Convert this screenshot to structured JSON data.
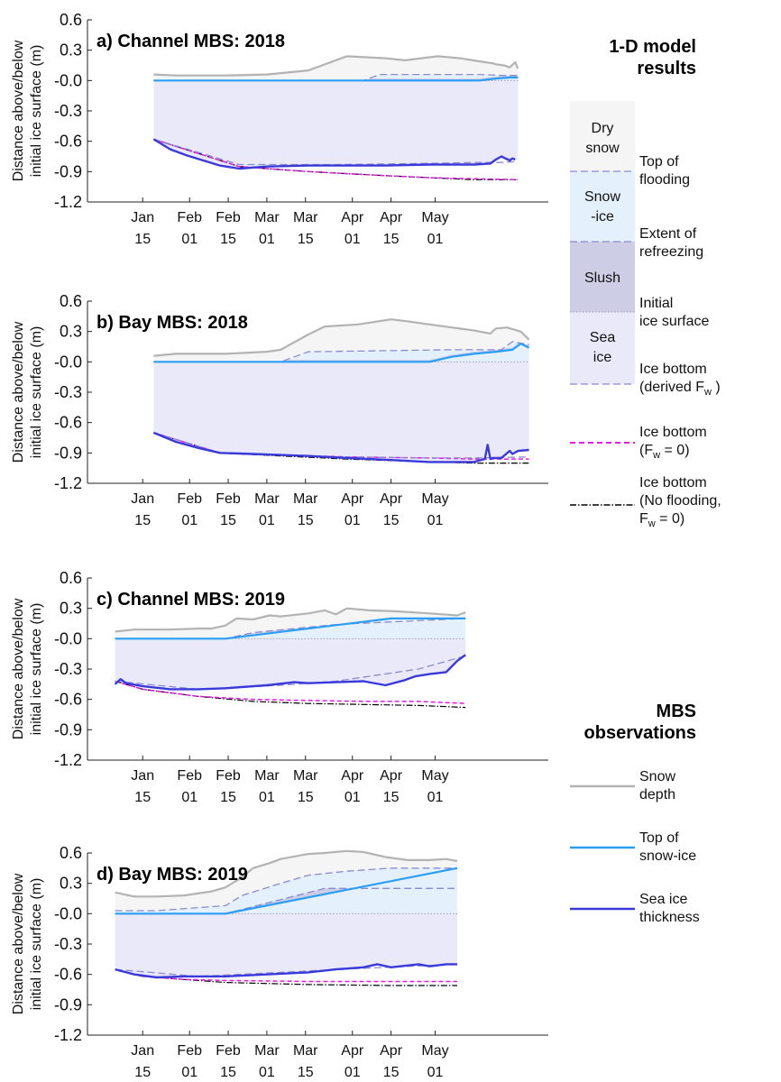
{
  "figure": {
    "header_model": [
      "1-D model",
      "results"
    ],
    "header_obs": [
      "MBS",
      "observations"
    ],
    "ylabel": [
      "Distance above/below",
      "initial ice surface (m)"
    ]
  },
  "legend": {
    "key_blocks": [
      {
        "lines": [
          "Dry",
          "snow"
        ],
        "color": "#f5f5f5"
      },
      {
        "lines": [
          "Snow",
          "-ice"
        ],
        "color": "#e4f1fc"
      },
      {
        "lines": [
          "Slush"
        ],
        "color": "#cecde6"
      },
      {
        "lines": [
          "Sea",
          "ice"
        ],
        "color": "#e9e9f9"
      }
    ],
    "top_of_flooding": [
      "Top of",
      "flooding"
    ],
    "extent_of_refreezing": [
      "Extent of",
      "refreezing"
    ],
    "initial_ice_surface": [
      "Initial",
      "ice surface"
    ],
    "ice_bottom_derived": [
      "Ice bottom",
      "(derived F",
      "w",
      " )"
    ],
    "ice_bottom_fw0": [
      "Ice bottom",
      "(F",
      "w",
      " = 0)"
    ],
    "ice_bottom_noflood": [
      "Ice bottom",
      "(No flooding,",
      "F",
      "w",
      " = 0)"
    ],
    "snow_depth": [
      "Snow",
      "depth"
    ],
    "top_snow_ice": [
      "Top of",
      "snow-ice"
    ],
    "sea_ice_thickness": [
      "Sea ice",
      "thickness"
    ]
  },
  "colors": {
    "snow_depth": "#b3b3b3",
    "top_snow_ice": "#2a9df4",
    "sea_ice_thickness": "#3a3adb",
    "ice_bottom_fw0": "#e619e6",
    "ice_bottom_noflood": "#000000",
    "dashed_model": "#8a8ad0",
    "dry_snow_fill": "#f5f5f5",
    "snow_ice_fill": "#e4f1fc",
    "slush_fill": "#cecde6",
    "sea_ice_fill": "#e9e9f9"
  },
  "chart_data": [
    {
      "type": "area",
      "title": "a) Channel MBS: 2018",
      "xlabel": "",
      "ylabel": "Distance above/below initial ice surface (m)",
      "ylim": [
        -1.2,
        0.6
      ],
      "yticks": [
        "0.6",
        "0.3",
        "-0.0",
        "-0.3",
        "-0.6",
        "-0.9",
        "-1.2"
      ],
      "xticks": [
        [
          "Jan",
          "15"
        ],
        [
          "Feb",
          "01"
        ],
        [
          "Feb",
          "15"
        ],
        [
          "Mar",
          "01"
        ],
        [
          "Mar",
          "15"
        ],
        [
          "Apr",
          "01"
        ],
        [
          "Apr",
          "15"
        ],
        [
          "May",
          "01"
        ]
      ],
      "x_note": "x values are days since Jan 15 of the plotted year",
      "series": [
        {
          "name": "Snow depth",
          "x": [
            4,
            12,
            30,
            45,
            60,
            74,
            88,
            95,
            107,
            115,
            122,
            127,
            128,
            131,
            133,
            135,
            136
          ],
          "y": [
            0.06,
            0.05,
            0.05,
            0.06,
            0.1,
            0.24,
            0.22,
            0.2,
            0.24,
            0.22,
            0.19,
            0.17,
            0.16,
            0.15,
            0.13,
            0.18,
            0.12
          ]
        },
        {
          "name": "Top of snow-ice",
          "x": [
            4,
            122,
            128,
            133,
            136
          ],
          "y": [
            0.0,
            0.0,
            0.02,
            0.03,
            0.03
          ]
        },
        {
          "name": "Top of flooding",
          "x": [
            4,
            80,
            86,
            95,
            122,
            130,
            136
          ],
          "y": [
            0.0,
            0.0,
            0.06,
            0.06,
            0.06,
            0.05,
            0.05
          ]
        },
        {
          "name": "Sea ice thickness",
          "x": [
            4,
            10,
            16,
            28,
            35,
            45,
            60,
            74,
            88,
            104,
            120,
            126,
            128,
            130,
            133,
            134,
            135
          ],
          "y": [
            -0.58,
            -0.68,
            -0.74,
            -0.84,
            -0.87,
            -0.85,
            -0.84,
            -0.84,
            -0.84,
            -0.83,
            -0.83,
            -0.82,
            -0.78,
            -0.75,
            -0.79,
            -0.77,
            -0.78
          ]
        },
        {
          "name": "Ice bottom (derived Fw)",
          "x": [
            4,
            35,
            70,
            100,
            120,
            130,
            136
          ],
          "y": [
            -0.58,
            -0.83,
            -0.83,
            -0.82,
            -0.81,
            -0.81,
            -0.8
          ]
        },
        {
          "name": "Ice bottom (Fw = 0)",
          "x": [
            4,
            35,
            45,
            60,
            74,
            88,
            104,
            120,
            136
          ],
          "y": [
            -0.58,
            -0.85,
            -0.87,
            -0.9,
            -0.92,
            -0.94,
            -0.96,
            -0.97,
            -0.98
          ]
        },
        {
          "name": "Ice bottom (No flooding, Fw = 0)",
          "x": [
            4,
            35,
            45,
            60,
            74,
            88,
            104,
            120,
            136
          ],
          "y": [
            -0.58,
            -0.85,
            -0.87,
            -0.9,
            -0.92,
            -0.94,
            -0.96,
            -0.98,
            -0.98
          ]
        }
      ]
    },
    {
      "type": "area",
      "title": "b) Bay MBS: 2018",
      "xlabel": "",
      "ylabel": "Distance above/below initial ice surface (m)",
      "ylim": [
        -1.2,
        0.6
      ],
      "yticks": [
        "0.6",
        "0.3",
        "-0.0",
        "-0.3",
        "-0.6",
        "-0.9",
        "-1.2"
      ],
      "xticks": [
        [
          "Jan",
          "15"
        ],
        [
          "Feb",
          "01"
        ],
        [
          "Feb",
          "15"
        ],
        [
          "Mar",
          "01"
        ],
        [
          "Mar",
          "15"
        ],
        [
          "Apr",
          "01"
        ],
        [
          "Apr",
          "15"
        ],
        [
          "May",
          "01"
        ]
      ],
      "x_note": "x values are days since Jan 15 of the plotted year",
      "series": [
        {
          "name": "Snow depth",
          "x": [
            4,
            12,
            30,
            45,
            50,
            60,
            66,
            78,
            90,
            96,
            104,
            112,
            120,
            126,
            128,
            132,
            137,
            140
          ],
          "y": [
            0.06,
            0.08,
            0.08,
            0.1,
            0.12,
            0.27,
            0.35,
            0.37,
            0.42,
            0.4,
            0.37,
            0.34,
            0.31,
            0.28,
            0.33,
            0.34,
            0.3,
            0.22
          ]
        },
        {
          "name": "Top of snow-ice",
          "x": [
            4,
            104,
            112,
            120,
            128,
            134,
            137,
            140
          ],
          "y": [
            0.0,
            0.0,
            0.05,
            0.08,
            0.1,
            0.12,
            0.18,
            0.14
          ]
        },
        {
          "name": "Top of flooding",
          "x": [
            4,
            50,
            60,
            112,
            130,
            134,
            140
          ],
          "y": [
            0.0,
            0.0,
            0.1,
            0.12,
            0.12,
            0.2,
            0.17
          ]
        },
        {
          "name": "Sea ice thickness",
          "x": [
            4,
            12,
            20,
            28,
            40,
            50,
            60,
            74,
            90,
            104,
            112,
            120,
            124,
            125,
            126,
            127,
            130,
            133,
            134,
            136,
            140
          ],
          "y": [
            -0.7,
            -0.79,
            -0.85,
            -0.9,
            -0.91,
            -0.92,
            -0.93,
            -0.95,
            -0.97,
            -0.99,
            -0.99,
            -0.99,
            -0.96,
            -0.82,
            -0.96,
            -0.95,
            -0.95,
            -0.88,
            -0.91,
            -0.88,
            -0.87
          ]
        },
        {
          "name": "Ice bottom (derived Fw)",
          "x": [
            4,
            28,
            50,
            74,
            104,
            120,
            140
          ],
          "y": [
            -0.7,
            -0.9,
            -0.92,
            -0.94,
            -0.95,
            -0.95,
            -0.94
          ]
        },
        {
          "name": "Ice bottom (Fw = 0)",
          "x": [
            4,
            28,
            50,
            74,
            104,
            120,
            140
          ],
          "y": [
            -0.7,
            -0.9,
            -0.92,
            -0.94,
            -0.95,
            -0.96,
            -0.96
          ]
        },
        {
          "name": "Ice bottom (No flooding, Fw = 0)",
          "x": [
            4,
            28,
            50,
            74,
            104,
            120,
            140
          ],
          "y": [
            -0.7,
            -0.9,
            -0.93,
            -0.96,
            -0.99,
            -1.0,
            -1.0
          ]
        }
      ]
    },
    {
      "type": "area",
      "title": "c) Channel MBS: 2019",
      "xlabel": "",
      "ylabel": "Distance above/below initial ice surface (m)",
      "ylim": [
        -1.2,
        0.6
      ],
      "yticks": [
        "0.6",
        "0.3",
        "-0.0",
        "-0.3",
        "-0.6",
        "-0.9",
        "-1.2"
      ],
      "xticks": [
        [
          "Jan",
          "15"
        ],
        [
          "Feb",
          "01"
        ],
        [
          "Feb",
          "15"
        ],
        [
          "Mar",
          "01"
        ],
        [
          "Mar",
          "15"
        ],
        [
          "Apr",
          "01"
        ],
        [
          "Apr",
          "15"
        ],
        [
          "May",
          "01"
        ]
      ],
      "x_note": "x values are days since Jan 15 of the plotted year",
      "series": [
        {
          "name": "Snow depth",
          "x": [
            -10,
            -3,
            10,
            20,
            25,
            30,
            34,
            40,
            46,
            50,
            60,
            66,
            70,
            74,
            82,
            92,
            104,
            114,
            117
          ],
          "y": [
            0.07,
            0.09,
            0.09,
            0.1,
            0.1,
            0.13,
            0.2,
            0.19,
            0.23,
            0.22,
            0.25,
            0.28,
            0.24,
            0.3,
            0.28,
            0.27,
            0.25,
            0.23,
            0.26
          ]
        },
        {
          "name": "Top of snow-ice",
          "x": [
            -10,
            30,
            90,
            117
          ],
          "y": [
            0.0,
            0.0,
            0.2,
            0.2
          ]
        },
        {
          "name": "Top of flooding",
          "x": [
            -10,
            30,
            40,
            70,
            117
          ],
          "y": [
            0.0,
            0.0,
            0.06,
            0.14,
            0.2
          ]
        },
        {
          "name": "Sea ice thickness",
          "x": [
            -10,
            -8,
            -6,
            0,
            10,
            20,
            30,
            45,
            55,
            60,
            70,
            80,
            88,
            95,
            99,
            104,
            110,
            114,
            116,
            117
          ],
          "y": [
            -0.45,
            -0.4,
            -0.44,
            -0.47,
            -0.5,
            -0.5,
            -0.49,
            -0.46,
            -0.43,
            -0.44,
            -0.43,
            -0.42,
            -0.46,
            -0.41,
            -0.37,
            -0.35,
            -0.33,
            -0.22,
            -0.18,
            -0.16
          ]
        },
        {
          "name": "Ice bottom (derived Fw)",
          "x": [
            -10,
            20,
            50,
            70,
            100,
            117
          ],
          "y": [
            -0.42,
            -0.5,
            -0.46,
            -0.42,
            -0.3,
            -0.17
          ]
        },
        {
          "name": "Ice bottom (Fw = 0)",
          "x": [
            -10,
            0,
            20,
            40,
            60,
            80,
            100,
            117
          ],
          "y": [
            -0.42,
            -0.5,
            -0.57,
            -0.6,
            -0.61,
            -0.62,
            -0.62,
            -0.64
          ]
        },
        {
          "name": "Ice bottom (No flooding, Fw = 0)",
          "x": [
            -10,
            0,
            20,
            40,
            60,
            80,
            100,
            117
          ],
          "y": [
            -0.42,
            -0.5,
            -0.57,
            -0.62,
            -0.64,
            -0.65,
            -0.66,
            -0.68
          ]
        }
      ]
    },
    {
      "type": "area",
      "title": "d) Bay MBS: 2019",
      "xlabel": "",
      "ylabel": "Distance above/below initial ice surface (m)",
      "ylim": [
        -1.2,
        0.6
      ],
      "yticks": [
        "0.6",
        "0.3",
        "-0.0",
        "-0.3",
        "-0.6",
        "-0.9",
        "-1.2"
      ],
      "xticks": [
        [
          "Jan",
          "15"
        ],
        [
          "Feb",
          "01"
        ],
        [
          "Feb",
          "15"
        ],
        [
          "Mar",
          "01"
        ],
        [
          "Mar",
          "15"
        ],
        [
          "Apr",
          "01"
        ],
        [
          "Apr",
          "15"
        ],
        [
          "May",
          "01"
        ]
      ],
      "x_note": "x values are days since Jan 15 of the plotted year",
      "series": [
        {
          "name": "Snow depth",
          "x": [
            -10,
            -3,
            5,
            15,
            25,
            30,
            36,
            40,
            46,
            50,
            60,
            66,
            74,
            80,
            88,
            96,
            104,
            110,
            114
          ],
          "y": [
            0.21,
            0.17,
            0.17,
            0.18,
            0.22,
            0.26,
            0.36,
            0.45,
            0.5,
            0.54,
            0.59,
            0.6,
            0.62,
            0.61,
            0.56,
            0.53,
            0.53,
            0.54,
            0.52
          ]
        },
        {
          "name": "Top of snow-ice",
          "x": [
            -10,
            5,
            30,
            114
          ],
          "y": [
            0.0,
            0.0,
            0.0,
            0.45
          ]
        },
        {
          "name": "Top of flooding",
          "x": [
            -10,
            5,
            30,
            36,
            50,
            60,
            74,
            90,
            114
          ],
          "y": [
            0.03,
            0.03,
            0.08,
            0.18,
            0.3,
            0.38,
            0.42,
            0.45,
            0.45
          ]
        },
        {
          "name": "Extent of refreezing",
          "x": [
            -10,
            30,
            66,
            114
          ],
          "y": [
            0.0,
            0.0,
            0.25,
            0.25
          ]
        },
        {
          "name": "Sea ice thickness",
          "x": [
            -10,
            -3,
            5,
            15,
            30,
            45,
            60,
            70,
            80,
            85,
            90,
            100,
            104,
            110,
            114
          ],
          "y": [
            -0.55,
            -0.6,
            -0.63,
            -0.62,
            -0.62,
            -0.6,
            -0.58,
            -0.55,
            -0.53,
            -0.5,
            -0.53,
            -0.5,
            -0.52,
            -0.5,
            -0.5
          ]
        },
        {
          "name": "Ice bottom (derived Fw)",
          "x": [
            -10,
            20,
            50,
            80,
            114
          ],
          "y": [
            -0.55,
            -0.62,
            -0.58,
            -0.54,
            -0.5
          ]
        },
        {
          "name": "Ice bottom (Fw = 0)",
          "x": [
            -10,
            0,
            15,
            30,
            60,
            90,
            114
          ],
          "y": [
            -0.55,
            -0.62,
            -0.65,
            -0.66,
            -0.67,
            -0.67,
            -0.67
          ]
        },
        {
          "name": "Ice bottom (No flooding, Fw = 0)",
          "x": [
            -10,
            0,
            15,
            30,
            60,
            90,
            114
          ],
          "y": [
            -0.55,
            -0.62,
            -0.65,
            -0.68,
            -0.7,
            -0.71,
            -0.71
          ]
        }
      ]
    }
  ]
}
